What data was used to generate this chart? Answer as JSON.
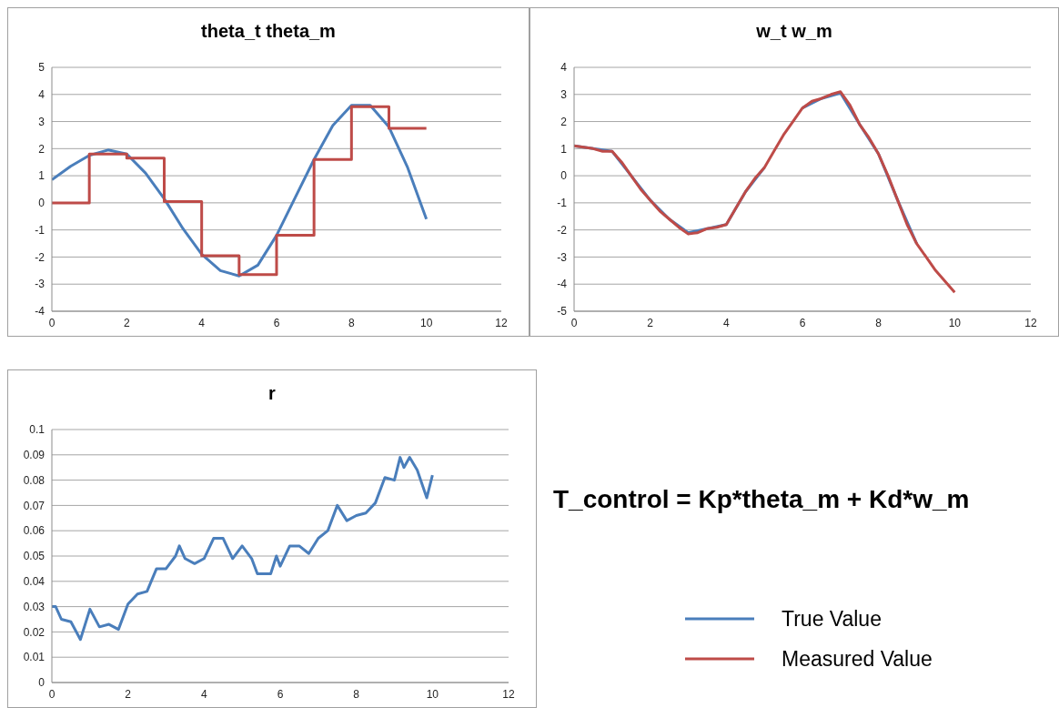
{
  "chart_data": [
    {
      "type": "line",
      "title": "theta_t  theta_m",
      "xlim": [
        0,
        12
      ],
      "xticks": [
        0,
        2,
        4,
        6,
        8,
        10,
        12
      ],
      "ylim": [
        -4,
        5
      ],
      "yticks": [
        -4,
        -3,
        -2,
        -1,
        0,
        1,
        2,
        3,
        4,
        5
      ],
      "grid": "y",
      "marker": "none",
      "legend": "bottom right",
      "series": [
        {
          "name": "True Value",
          "color": "#4a7ebb",
          "x": [
            0,
            0.5,
            1,
            1.5,
            2,
            2.5,
            3,
            3.5,
            4,
            4.5,
            5,
            5.5,
            6,
            6.5,
            7,
            7.5,
            8,
            8.5,
            9,
            9.5,
            10
          ],
          "values": [
            0.85,
            1.35,
            1.75,
            1.95,
            1.8,
            1.1,
            0.15,
            -0.95,
            -1.9,
            -2.5,
            -2.7,
            -2.3,
            -1.2,
            0.2,
            1.6,
            2.85,
            3.6,
            3.6,
            2.8,
            1.3,
            -0.6
          ]
        },
        {
          "name": "Measured Value",
          "type": "step",
          "color": "#be4b48",
          "x": [
            0,
            1,
            2,
            3,
            4,
            5,
            6,
            7,
            8,
            9,
            10
          ],
          "values": [
            0,
            1.8,
            1.65,
            0.05,
            -1.95,
            -2.65,
            -1.2,
            1.6,
            3.55,
            2.75,
            2.75
          ]
        }
      ]
    },
    {
      "type": "line",
      "title": "w_t  w_m",
      "xlim": [
        0,
        12
      ],
      "xticks": [
        0,
        2,
        4,
        6,
        8,
        10,
        12
      ],
      "ylim": [
        -5,
        4
      ],
      "yticks": [
        -5,
        -4,
        -3,
        -2,
        -1,
        0,
        1,
        2,
        3,
        4
      ],
      "grid": "y",
      "marker": "none",
      "series": [
        {
          "color": "#4a7ebb",
          "x": [
            0,
            0.5,
            1,
            1.5,
            2,
            2.5,
            3,
            3.5,
            4,
            4.5,
            5,
            5.5,
            6,
            6.5,
            7,
            7.5,
            8,
            8.5,
            9
          ],
          "values": [
            1.1,
            1.0,
            0.9,
            0.0,
            -0.9,
            -1.6,
            -2.1,
            -1.95,
            -1.8,
            -0.6,
            0.3,
            null,
            2.5,
            2.85,
            3.05,
            1.9,
            0.8,
            -0.9,
            -2.5
          ]
        },
        {
          "color": "#be4b48",
          "x": [
            0,
            0.25,
            0.5,
            0.75,
            1,
            1.25,
            1.5,
            1.75,
            2,
            2.25,
            2.5,
            2.75,
            3,
            3.25,
            3.5,
            3.75,
            4,
            4.25,
            4.5,
            4.75,
            5,
            5.25,
            5.5,
            5.75,
            6,
            6.25,
            6.5,
            6.75,
            7,
            7.25,
            7.5,
            7.75,
            8,
            8.25,
            8.5,
            8.75,
            9,
            9.25,
            9.5,
            9.75,
            10
          ],
          "values": [
            1.1,
            1.05,
            1.0,
            0.9,
            0.9,
            0.5,
            0.0,
            -0.5,
            -0.9,
            -1.3,
            -1.6,
            -1.9,
            -2.15,
            -2.1,
            -1.95,
            -1.9,
            -1.8,
            -1.2,
            -0.6,
            -0.1,
            0.3,
            0.9,
            1.5,
            2.0,
            2.5,
            2.75,
            2.85,
            3.0,
            3.1,
            2.6,
            1.9,
            1.4,
            0.8,
            0.0,
            -0.9,
            -1.8,
            -2.5,
            -3.0,
            -3.5,
            -3.9,
            -4.3
          ]
        }
      ]
    },
    {
      "type": "line",
      "title": "r",
      "xlim": [
        0,
        12
      ],
      "xticks": [
        0,
        2,
        4,
        6,
        8,
        10,
        12
      ],
      "ylim": [
        0,
        0.1
      ],
      "yticks": [
        0,
        0.01,
        0.02,
        0.03,
        0.04,
        0.05,
        0.06,
        0.07,
        0.08,
        0.09,
        0.1
      ],
      "grid": "y",
      "marker": "none",
      "series": [
        {
          "color": "#4a7ebb",
          "x": [
            0,
            0.1,
            0.25,
            0.5,
            0.75,
            1,
            1.25,
            1.5,
            1.75,
            2,
            2.25,
            2.5,
            2.75,
            3,
            3.25,
            3.35,
            3.5,
            3.75,
            4,
            4.25,
            4.5,
            4.75,
            5,
            5.25,
            5.4,
            5.75,
            5.9,
            6,
            6.25,
            6.5,
            6.75,
            7,
            7.25,
            7.5,
            7.75,
            8,
            8.25,
            8.5,
            8.75,
            9,
            9.15,
            9.25,
            9.4,
            9.6,
            9.85,
            10
          ],
          "values": [
            0.03,
            0.03,
            0.025,
            0.024,
            0.017,
            0.029,
            0.022,
            0.023,
            0.021,
            0.031,
            0.035,
            0.036,
            0.045,
            0.045,
            0.05,
            0.054,
            0.049,
            0.047,
            0.049,
            0.057,
            0.057,
            0.049,
            0.054,
            0.049,
            0.043,
            0.043,
            0.05,
            0.046,
            0.054,
            0.054,
            0.051,
            0.057,
            0.06,
            0.07,
            0.064,
            0.066,
            0.067,
            0.071,
            0.081,
            0.08,
            0.089,
            0.085,
            0.089,
            0.084,
            0.073,
            0.082
          ]
        }
      ]
    },
    {
      "type": "other",
      "annotations": [
        "T_control = Kp*theta_m + Kd*w_m"
      ]
    }
  ]
}
